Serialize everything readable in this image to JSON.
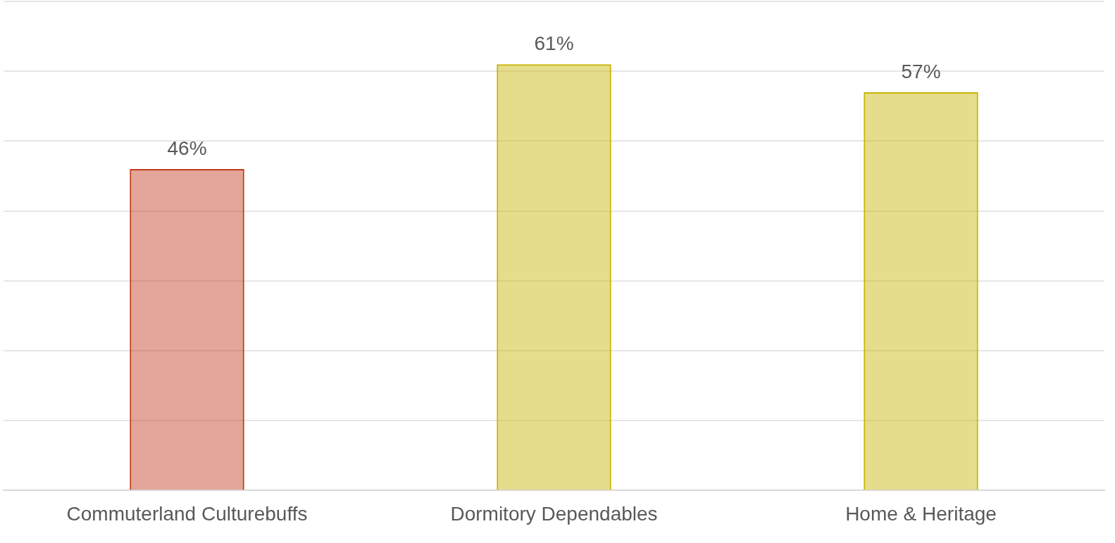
{
  "chart_data": {
    "type": "bar",
    "categories": [
      "Commuterland Culturebuffs",
      "Dormitory Dependables",
      "Home & Heritage"
    ],
    "values": [
      46,
      61,
      57
    ],
    "colors": [
      "#c0391b",
      "#c8b400",
      "#c8b400"
    ],
    "value_labels": [
      "46%",
      "61%",
      "57%"
    ],
    "ylim": [
      0,
      70
    ],
    "yticks": [
      {
        "value": 0,
        "label": null
      },
      {
        "value": 10,
        "label": null
      },
      {
        "value": 20,
        "label": null
      },
      {
        "value": 30,
        "label": null
      },
      {
        "value": 40,
        "label": null
      },
      {
        "value": 50,
        "label": null
      },
      {
        "value": 60,
        "label": null
      },
      {
        "value": 70,
        "label": null
      }
    ],
    "grid": "y",
    "tick_labels": "x",
    "legend": false
  }
}
